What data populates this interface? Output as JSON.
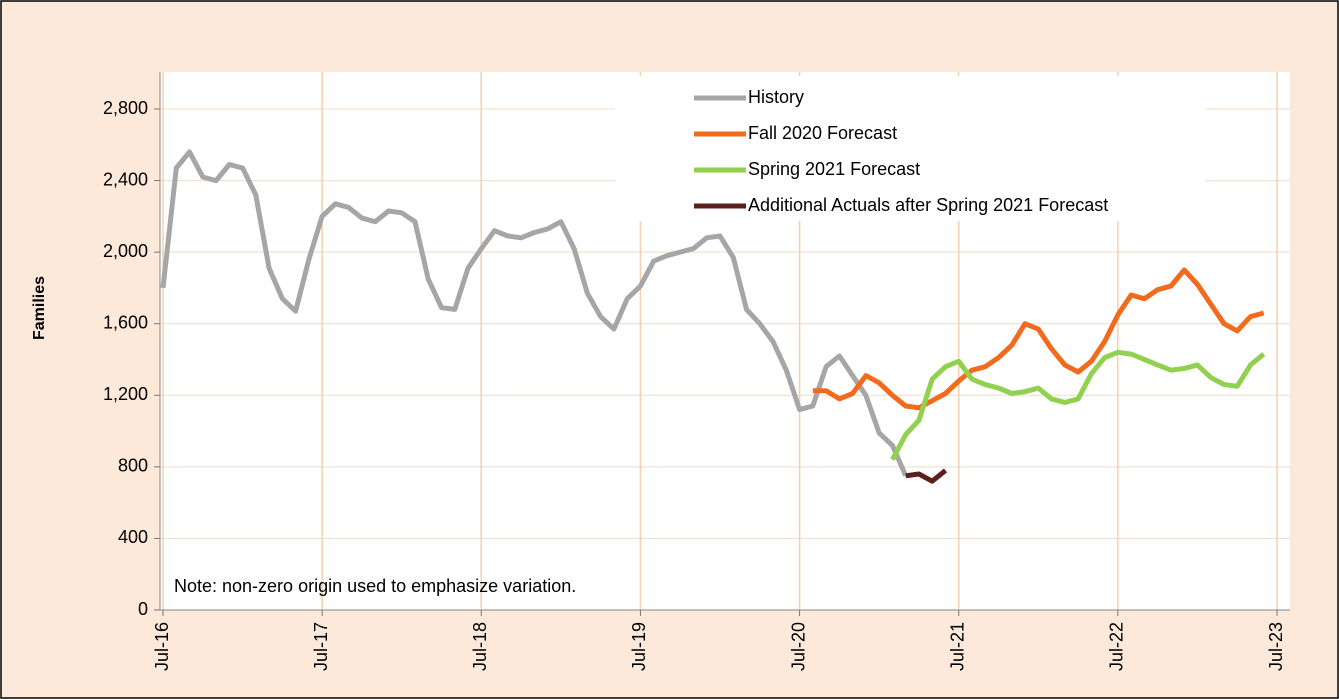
{
  "chart_data": {
    "type": "line",
    "ylabel": "Families",
    "annotation": "Note: non-zero origin used to emphasize variation.",
    "categories": [
      "Jul-16",
      null,
      null,
      null,
      null,
      null,
      null,
      null,
      null,
      null,
      null,
      null,
      "Jul-17",
      null,
      null,
      null,
      null,
      null,
      null,
      null,
      null,
      null,
      null,
      null,
      "Jul-18",
      null,
      null,
      null,
      null,
      null,
      null,
      null,
      null,
      null,
      null,
      null,
      "Jul-19",
      null,
      null,
      null,
      null,
      null,
      null,
      null,
      null,
      null,
      null,
      null,
      "Jul-20",
      null,
      null,
      null,
      null,
      null,
      null,
      null,
      null,
      null,
      null,
      null,
      "Jul-21",
      null,
      null,
      null,
      null,
      null,
      null,
      null,
      null,
      null,
      null,
      null,
      "Jul-22",
      null,
      null,
      null,
      null,
      null,
      null,
      null,
      null,
      null,
      null,
      null,
      "Jul-23"
    ],
    "series": [
      {
        "name": "History",
        "color": "#a6a6a6",
        "values": [
          1800,
          2470,
          2560,
          2420,
          2400,
          2490,
          2470,
          2320,
          1910,
          1740,
          1670,
          1960,
          2200,
          2270,
          2250,
          2190,
          2170,
          2230,
          2220,
          2170,
          1850,
          1690,
          1680,
          1910,
          2020,
          2120,
          2090,
          2080,
          2110,
          2130,
          2170,
          2020,
          1770,
          1640,
          1570,
          1740,
          1810,
          1950,
          1980,
          2000,
          2020,
          2080,
          2090,
          1970,
          1680,
          1600,
          1500,
          1340,
          1120,
          1140,
          1360,
          1420,
          1310,
          1200,
          990,
          920,
          750,
          null,
          null,
          null,
          null,
          null,
          null,
          null,
          null,
          null,
          null,
          null,
          null,
          null,
          null,
          null,
          null,
          null,
          null,
          null,
          null,
          null,
          null,
          null,
          null,
          null,
          null,
          null,
          null
        ]
      },
      {
        "name": "Fall 2020 Forecast",
        "color": "#f26b1d",
        "values": [
          null,
          null,
          null,
          null,
          null,
          null,
          null,
          null,
          null,
          null,
          null,
          null,
          null,
          null,
          null,
          null,
          null,
          null,
          null,
          null,
          null,
          null,
          null,
          null,
          null,
          null,
          null,
          null,
          null,
          null,
          null,
          null,
          null,
          null,
          null,
          null,
          null,
          null,
          null,
          null,
          null,
          null,
          null,
          null,
          null,
          null,
          null,
          null,
          null,
          1225,
          1225,
          1180,
          1210,
          1310,
          1270,
          1200,
          1140,
          1130,
          1170,
          1210,
          1280,
          1340,
          1360,
          1410,
          1480,
          1600,
          1570,
          1460,
          1370,
          1330,
          1390,
          1500,
          1650,
          1760,
          1740,
          1790,
          1810,
          1900,
          1820,
          1710,
          1600,
          1560,
          1640,
          1660,
          null
        ]
      },
      {
        "name": "Spring 2021 Forecast",
        "color": "#92d050",
        "values": [
          null,
          null,
          null,
          null,
          null,
          null,
          null,
          null,
          null,
          null,
          null,
          null,
          null,
          null,
          null,
          null,
          null,
          null,
          null,
          null,
          null,
          null,
          null,
          null,
          null,
          null,
          null,
          null,
          null,
          null,
          null,
          null,
          null,
          null,
          null,
          null,
          null,
          null,
          null,
          null,
          null,
          null,
          null,
          null,
          null,
          null,
          null,
          null,
          null,
          null,
          null,
          null,
          null,
          null,
          null,
          840,
          980,
          1060,
          1290,
          1360,
          1390,
          1290,
          1260,
          1240,
          1210,
          1220,
          1240,
          1180,
          1160,
          1180,
          1320,
          1410,
          1440,
          1430,
          1400,
          1370,
          1340,
          1350,
          1370,
          1300,
          1260,
          1250,
          1370,
          1430,
          null
        ]
      },
      {
        "name": "Additional Actuals after Spring 2021 Forecast",
        "color": "#5c1f1f",
        "values": [
          null,
          null,
          null,
          null,
          null,
          null,
          null,
          null,
          null,
          null,
          null,
          null,
          null,
          null,
          null,
          null,
          null,
          null,
          null,
          null,
          null,
          null,
          null,
          null,
          null,
          null,
          null,
          null,
          null,
          null,
          null,
          null,
          null,
          null,
          null,
          null,
          null,
          null,
          null,
          null,
          null,
          null,
          null,
          null,
          null,
          null,
          null,
          null,
          null,
          null,
          null,
          null,
          null,
          null,
          null,
          null,
          750,
          760,
          720,
          780,
          null,
          null,
          null,
          null,
          null,
          null,
          null,
          null,
          null,
          null,
          null,
          null,
          null,
          null,
          null,
          null,
          null,
          null,
          null,
          null,
          null,
          null,
          null,
          null,
          null
        ]
      }
    ],
    "ylim": [
      0,
      2950
    ],
    "yticks": [
      0,
      400,
      800,
      {
        "value": 1200,
        "label": "1,200"
      },
      {
        "value": 1600,
        "label": "1,600"
      },
      {
        "value": 2000,
        "label": "2,000"
      },
      {
        "value": 2400,
        "label": "2,400"
      },
      {
        "value": 2800,
        "label": "2,800"
      }
    ],
    "grid": true,
    "legend": "upper right"
  }
}
